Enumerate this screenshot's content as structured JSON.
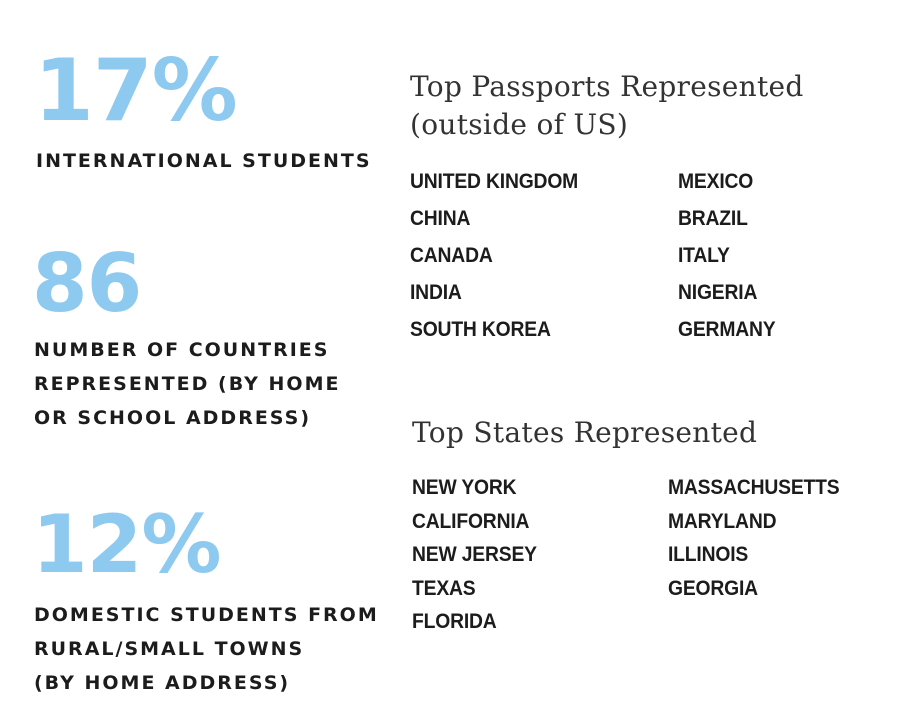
{
  "stats": [
    {
      "value": "17%",
      "label_lines": [
        "INTERNATIONAL STUDENTS"
      ]
    },
    {
      "value": "86",
      "label_lines": [
        "NUMBER OF COUNTRIES",
        "REPRESENTED (BY HOME",
        "OR SCHOOL ADDRESS)"
      ]
    },
    {
      "value": "12%",
      "label_lines": [
        "DOMESTIC STUDENTS FROM",
        "RURAL/SMALL TOWNS",
        "(BY HOME ADDRESS)"
      ]
    }
  ],
  "passports": {
    "heading_lines": [
      "Top Passports Represented",
      "(outside of US)"
    ],
    "left": [
      "UNITED KINGDOM",
      "CHINA",
      "CANADA",
      "INDIA",
      "SOUTH KOREA"
    ],
    "right": [
      "MEXICO",
      "BRAZIL",
      "ITALY",
      "NIGERIA",
      "GERMANY"
    ]
  },
  "states": {
    "heading": "Top States Represented",
    "left": [
      "NEW YORK",
      "CALIFORNIA",
      "NEW JERSEY",
      "TEXAS",
      "FLORIDA"
    ],
    "right": [
      "MASSACHUSETTS",
      "MARYLAND",
      "ILLINOIS",
      "GEORGIA"
    ]
  },
  "colors": {
    "accent": "#8ecaef",
    "text": "#1c1c1c",
    "heading": "#333333"
  }
}
